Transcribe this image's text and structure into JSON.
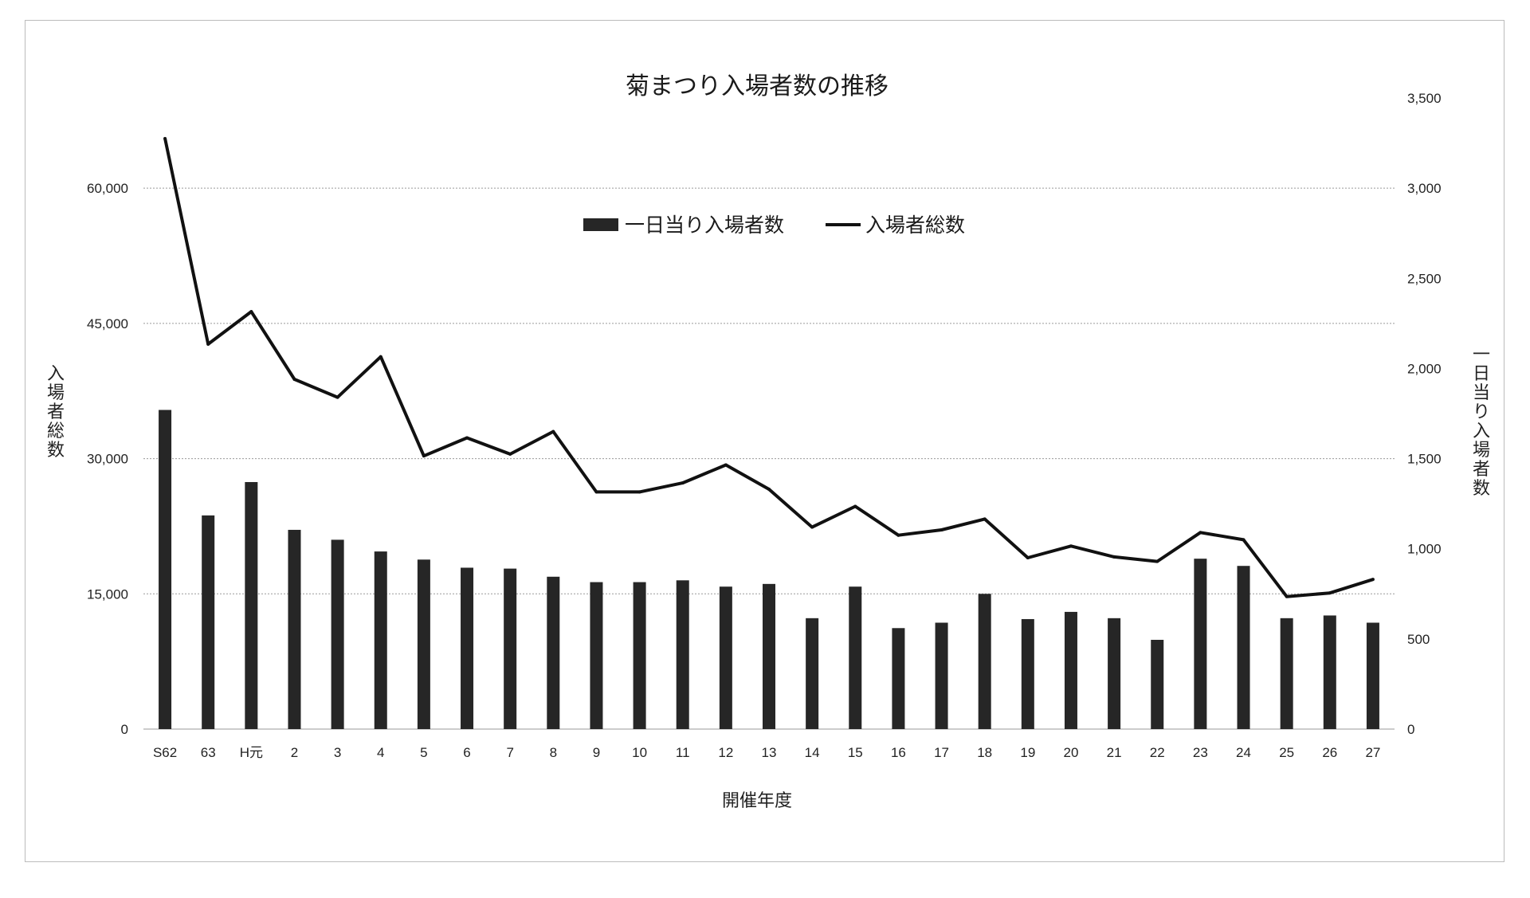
{
  "chart_data": {
    "type": "bar",
    "title": "菊まつり入場者数の推移",
    "xlabel": "開催年度",
    "ylabel_left": "入場者総数",
    "ylabel_right": "一日当り入場者数",
    "categories": [
      "S62",
      "63",
      "H元",
      "2",
      "3",
      "4",
      "5",
      "6",
      "7",
      "8",
      "9",
      "10",
      "11",
      "12",
      "13",
      "14",
      "15",
      "16",
      "17",
      "18",
      "19",
      "20",
      "21",
      "22",
      "23",
      "24",
      "25",
      "26",
      "27"
    ],
    "ylim_left": [
      0,
      70000
    ],
    "ylim_right": [
      0,
      3500
    ],
    "yticks_left": [
      0,
      15000,
      30000,
      45000,
      60000
    ],
    "yticks_left_labels": [
      "0",
      "15,000",
      "30,000",
      "45,000",
      "60,000"
    ],
    "yticks_right": [
      0,
      500,
      1000,
      1500,
      2000,
      2500,
      3000,
      3500
    ],
    "yticks_right_labels": [
      "0",
      "500",
      "1,000",
      "1,500",
      "2,000",
      "2,500",
      "3,000",
      "3,500"
    ],
    "grid": true,
    "legend_position": "top-center",
    "series": [
      {
        "name": "一日当り入場者数",
        "kind": "bar",
        "axis": "right",
        "color": "#262626",
        "values": [
          1770,
          1185,
          1370,
          1105,
          1050,
          985,
          940,
          895,
          890,
          845,
          815,
          815,
          825,
          790,
          805,
          615,
          790,
          560,
          590,
          750,
          610,
          650,
          615,
          495,
          945,
          905,
          615,
          630,
          590
        ]
      },
      {
        "name": "入場者総数",
        "kind": "line",
        "axis": "left",
        "color": "#111111",
        "values": [
          65500,
          42700,
          46300,
          38800,
          36800,
          41300,
          30300,
          32300,
          30500,
          33000,
          26300,
          26300,
          27300,
          29300,
          26600,
          22400,
          24700,
          21500,
          22100,
          23300,
          19000,
          20300,
          19100,
          18600,
          21800,
          21000,
          14700,
          15100,
          16600
        ]
      }
    ]
  }
}
